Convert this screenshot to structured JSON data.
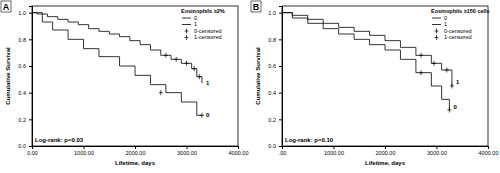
{
  "chart_data": [
    {
      "type": "line",
      "title": "A",
      "subtitle": "Eosinophils ≥2%",
      "x_label": "Lifetime, days",
      "y_label": "Cumulative Survival",
      "xlim": [
        0,
        4000
      ],
      "xticks": [
        {
          "value": 0,
          "label": "0.00"
        },
        {
          "value": 1000,
          "label": "1000.00"
        },
        {
          "value": 2000,
          "label": "2000.00"
        },
        {
          "value": 3000,
          "label": "3000.00"
        },
        {
          "value": 4000,
          "label": "4000.00"
        }
      ],
      "ylim": [
        0,
        1.05
      ],
      "yticks": [
        {
          "value": 0,
          "label": "0.0"
        },
        {
          "value": 0.2,
          "label": "0.2"
        },
        {
          "value": 0.4,
          "label": "0.4"
        },
        {
          "value": 0.6,
          "label": "0.6"
        },
        {
          "value": 0.8,
          "label": "0.8"
        },
        {
          "value": 1,
          "label": "1.0"
        }
      ],
      "legend": "top-right",
      "series": [
        {
          "name": "0",
          "type": "step",
          "color": "#000000",
          "line_style": "solid",
          "x": [
            0,
            200,
            400,
            700,
            1000,
            1300,
            1700,
            2000,
            2300,
            2600,
            2900,
            3200,
            3300
          ],
          "values": [
            1,
            0.93,
            0.87,
            0.8,
            0.73,
            0.67,
            0.6,
            0.53,
            0.46,
            0.4,
            0.33,
            0.23,
            0.23
          ]
        },
        {
          "name": "1",
          "type": "step",
          "color": "#000000",
          "line_style": "solid",
          "x": [
            0,
            100,
            300,
            500,
            700,
            900,
            1100,
            1300,
            1500,
            1700,
            1900,
            2100,
            2300,
            2500,
            2700,
            2900,
            3100,
            3200,
            3300
          ],
          "values": [
            1,
            0.99,
            0.97,
            0.95,
            0.93,
            0.91,
            0.88,
            0.86,
            0.84,
            0.82,
            0.79,
            0.76,
            0.72,
            0.68,
            0.65,
            0.62,
            0.58,
            0.52,
            0.47
          ]
        },
        {
          "name": "0-censored",
          "type": "scatter",
          "color": "#000000",
          "marker": "plus",
          "x": [
            2500,
            3300
          ],
          "values": [
            0.4,
            0.23
          ]
        },
        {
          "name": "1-censored",
          "type": "scatter",
          "color": "#000000",
          "marker": "plus",
          "x": [
            2600,
            2800,
            3000,
            3150,
            3250
          ],
          "values": [
            0.68,
            0.65,
            0.62,
            0.58,
            0.52
          ]
        }
      ],
      "annotations": [
        {
          "text": "Log-rank: p=0.03"
        },
        {
          "text": "1",
          "x": 3380,
          "y": 0.47
        },
        {
          "text": "0",
          "x": 3380,
          "y": 0.23
        }
      ]
    },
    {
      "type": "line",
      "title": "B",
      "subtitle": "Eosinophils ≥150 cells",
      "x_label": "Lifetime, days",
      "y_label": "Cumulative Survival",
      "xlim": [
        0,
        4000
      ],
      "xticks": [
        {
          "value": 0,
          "label": ".00"
        },
        {
          "value": 1000,
          "label": "1000.00"
        },
        {
          "value": 2000,
          "label": "2000.00"
        },
        {
          "value": 3000,
          "label": "3000.00"
        },
        {
          "value": 4000,
          "label": "4000.00"
        }
      ],
      "ylim": [
        0,
        1.05
      ],
      "yticks": [
        {
          "value": 0,
          "label": "0.0"
        },
        {
          "value": 0.2,
          "label": "0.2"
        },
        {
          "value": 0.4,
          "label": "0.4"
        },
        {
          "value": 0.6,
          "label": "0.6"
        },
        {
          "value": 0.8,
          "label": "0.8"
        },
        {
          "value": 1,
          "label": "1.0"
        }
      ],
      "legend": "top-right",
      "series": [
        {
          "name": "0",
          "type": "step",
          "color": "#000000",
          "line_style": "solid",
          "x": [
            0,
            200,
            500,
            800,
            1100,
            1400,
            1700,
            2000,
            2300,
            2600,
            2900,
            3100,
            3250
          ],
          "values": [
            1,
            0.96,
            0.92,
            0.88,
            0.84,
            0.8,
            0.76,
            0.72,
            0.65,
            0.55,
            0.45,
            0.35,
            0.27
          ]
        },
        {
          "name": "1",
          "type": "step",
          "color": "#000000",
          "line_style": "solid",
          "x": [
            0,
            200,
            500,
            800,
            1100,
            1400,
            1700,
            2000,
            2300,
            2600,
            2900,
            3100,
            3300
          ],
          "values": [
            1,
            0.98,
            0.95,
            0.92,
            0.89,
            0.86,
            0.83,
            0.79,
            0.74,
            0.68,
            0.62,
            0.57,
            0.45
          ]
        },
        {
          "name": "0-censored",
          "type": "scatter",
          "color": "#000000",
          "marker": "plus",
          "x": [
            2700,
            3250
          ],
          "values": [
            0.55,
            0.27
          ]
        },
        {
          "name": "1-censored",
          "type": "scatter",
          "color": "#000000",
          "marker": "plus",
          "x": [
            2700,
            2950,
            3200,
            3300
          ],
          "values": [
            0.68,
            0.62,
            0.57,
            0.45
          ]
        }
      ],
      "annotations": [
        {
          "text": "Log-rank: p=0.10"
        },
        {
          "text": "1",
          "x": 3380,
          "y": 0.48
        },
        {
          "text": "0",
          "x": 3330,
          "y": 0.29
        }
      ]
    }
  ]
}
